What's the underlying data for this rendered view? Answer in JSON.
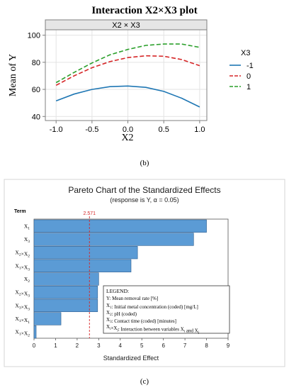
{
  "panel_b_label": "(b)",
  "panel_c_label": "(c)",
  "chart_data": [
    {
      "type": "line",
      "title": "Interaction X2×X3 plot",
      "panel_header": "X2 × X3",
      "xlabel": "X2",
      "ylabel": "Mean of Y",
      "xlim": [
        -1.15,
        1.1
      ],
      "ylim": [
        37,
        104
      ],
      "xticks": [
        "-1.0",
        "-0.5",
        "0.0",
        "0.5",
        "1.0"
      ],
      "yticks": [
        "40",
        "60",
        "80",
        "100"
      ],
      "grid": true,
      "legend_title": "X3",
      "legend_placement": "right",
      "x": [
        -1.0,
        -0.75,
        -0.5,
        -0.25,
        0.0,
        0.25,
        0.5,
        0.75,
        1.0
      ],
      "series": [
        {
          "name": "-1",
          "style": "solid",
          "color": "#1f77b4",
          "values": [
            51.5,
            56.5,
            60.0,
            62.0,
            62.5,
            61.5,
            58.5,
            53.5,
            47.0
          ]
        },
        {
          "name": "0",
          "style": "dashed",
          "color": "#d62728",
          "values": [
            63.0,
            70.0,
            76.0,
            80.5,
            83.5,
            84.8,
            84.5,
            82.0,
            77.5
          ]
        },
        {
          "name": "1",
          "style": "dashed",
          "color": "#2ca02c",
          "values": [
            65.0,
            72.5,
            79.5,
            85.5,
            89.5,
            92.5,
            93.5,
            93.5,
            91.0
          ]
        }
      ]
    },
    {
      "type": "bar",
      "orientation": "horizontal",
      "title": "Pareto Chart of the Standardized Effects",
      "subtitle": "(response is Y, α = 0.05)",
      "ylabel": "Term",
      "xlabel": "Standardized Effect",
      "xlim": [
        0,
        9
      ],
      "xticks": [
        "0",
        "1",
        "2",
        "3",
        "4",
        "5",
        "6",
        "7",
        "8",
        "9"
      ],
      "reference_value": 2.571,
      "reference_label": "2.571",
      "bar_color": "#5b9bd5",
      "categories": [
        "X1",
        "X3",
        "X2×X2",
        "X1×X3",
        "X2",
        "X2×X3",
        "X3×X3",
        "X1×X1",
        "X1×X2"
      ],
      "values": [
        8.0,
        7.4,
        4.8,
        4.5,
        3.0,
        2.95,
        2.95,
        1.25,
        0.1
      ],
      "legend": {
        "title": "LEGEND:",
        "lines": [
          "Y: Mean removal rate [%]",
          "X1: Initial metal concentration (coded) [mg/L]",
          "X2: pH (coded)",
          "X3: Contact time (coded) [minutes]",
          "Xi×Xj: Interaction between variables Xi and Xj"
        ]
      }
    }
  ]
}
